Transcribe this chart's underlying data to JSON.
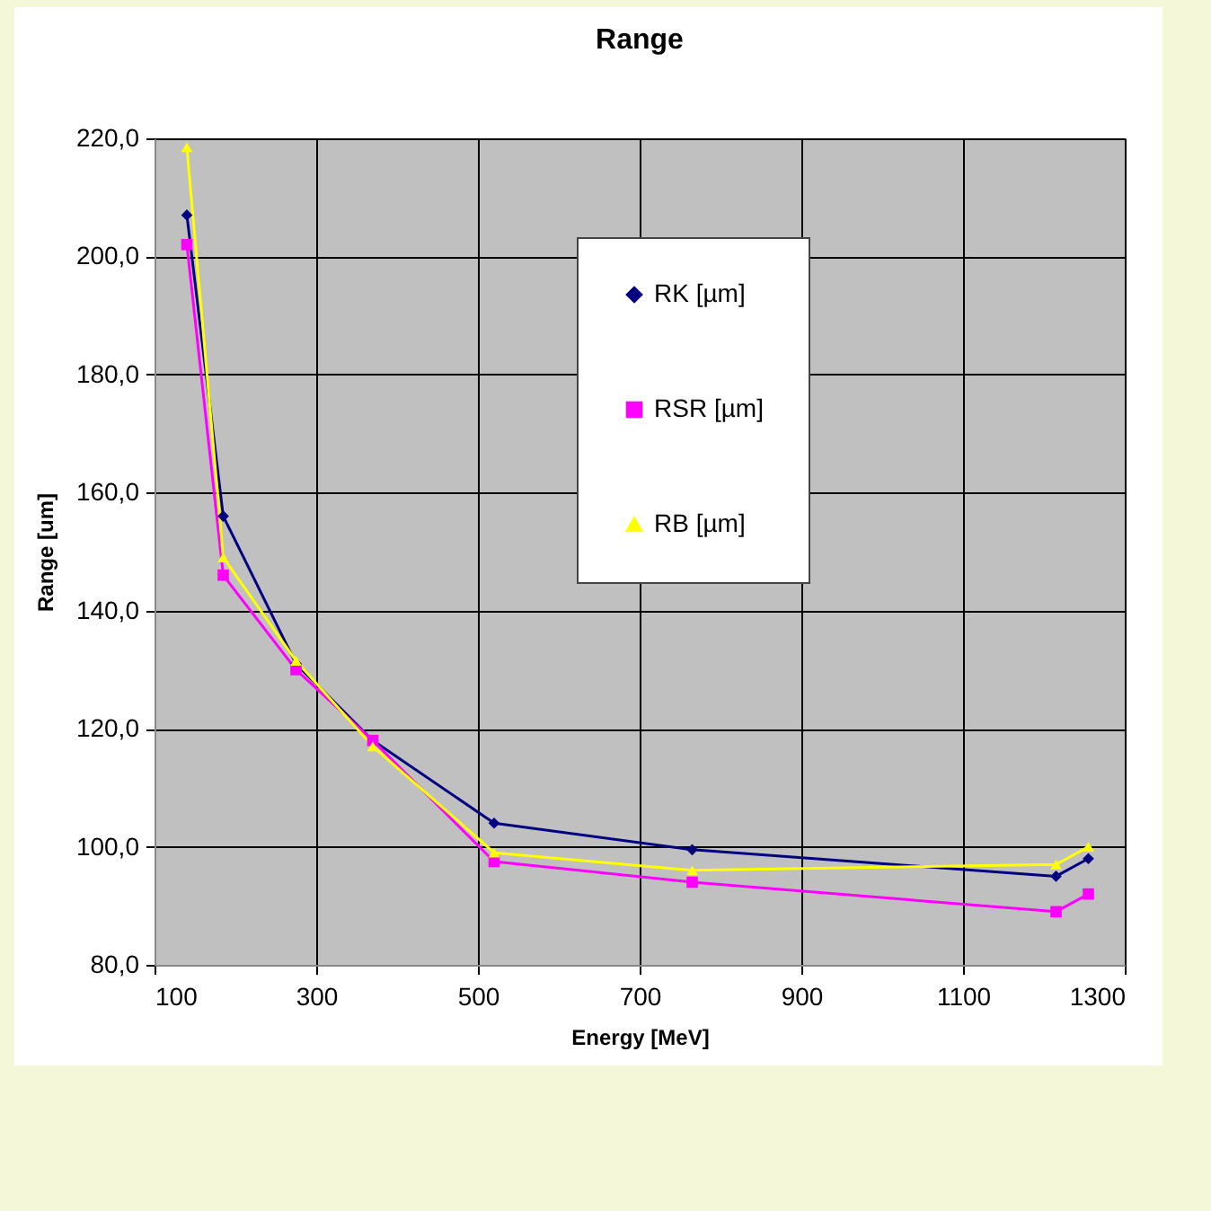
{
  "chart_data": {
    "type": "line",
    "title": "Range",
    "xlabel": "Energy [MeV]",
    "ylabel": "Range [um]",
    "x": [
      140,
      185,
      275,
      370,
      520,
      765,
      1215,
      1255
    ],
    "series": [
      {
        "name": "RK [µm]",
        "color": "#000080",
        "marker": "diamond",
        "values": [
          207,
          156,
          131,
          118,
          104,
          99.5,
          95,
          98
        ]
      },
      {
        "name": "RSR [µm]",
        "color": "#ff00ff",
        "marker": "square",
        "values": [
          202,
          146,
          130,
          118,
          97.5,
          94,
          89,
          92
        ]
      },
      {
        "name": "RB [µm]",
        "color": "#ffff00",
        "marker": "triangle",
        "values": [
          218.5,
          149,
          131.5,
          117,
          99,
          96,
          97,
          100
        ]
      }
    ],
    "xlim": [
      100,
      1300
    ],
    "xticks": [
      100,
      300,
      500,
      700,
      900,
      1100,
      1300
    ],
    "ylim": [
      80,
      220
    ],
    "yticks": [
      {
        "value": 80,
        "label": "80,0"
      },
      {
        "value": 100,
        "label": "100,0"
      },
      {
        "value": 120,
        "label": "120,0"
      },
      {
        "value": 140,
        "label": "140,0"
      },
      {
        "value": 160,
        "label": "160,0"
      },
      {
        "value": 180,
        "label": "180,0"
      },
      {
        "value": 200,
        "label": "200,0"
      },
      {
        "value": 220,
        "label": "220,0"
      }
    ],
    "grid": true,
    "legend": "top",
    "line_style": "solid"
  }
}
